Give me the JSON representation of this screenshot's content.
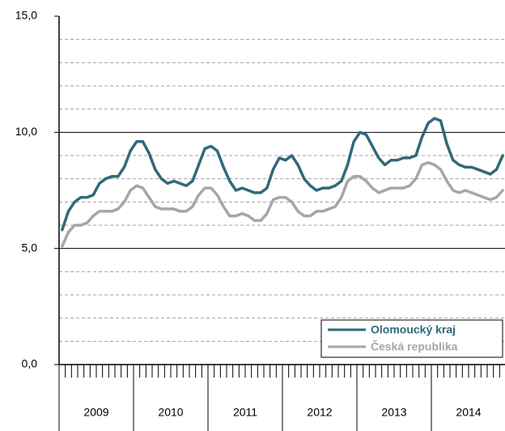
{
  "chart_data": {
    "type": "line",
    "categories": [
      "2009",
      "2009",
      "2009",
      "2009",
      "2009",
      "2009",
      "2009",
      "2009",
      "2009",
      "2009",
      "2009",
      "2009",
      "2010",
      "2010",
      "2010",
      "2010",
      "2010",
      "2010",
      "2010",
      "2010",
      "2010",
      "2010",
      "2010",
      "2010",
      "2011",
      "2011",
      "2011",
      "2011",
      "2011",
      "2011",
      "2011",
      "2011",
      "2011",
      "2011",
      "2011",
      "2011",
      "2012",
      "2012",
      "2012",
      "2012",
      "2012",
      "2012",
      "2012",
      "2012",
      "2012",
      "2012",
      "2012",
      "2012",
      "2013",
      "2013",
      "2013",
      "2013",
      "2013",
      "2013",
      "2013",
      "2013",
      "2013",
      "2013",
      "2013",
      "2013",
      "2014",
      "2014",
      "2014",
      "2014",
      "2014",
      "2014",
      "2014",
      "2014",
      "2014",
      "2014",
      "2014",
      "2014"
    ],
    "series": [
      {
        "name": "Olomoucký kraj",
        "color": "#31697a",
        "values": [
          5.8,
          6.6,
          7.0,
          7.2,
          7.2,
          7.3,
          7.8,
          8.0,
          8.1,
          8.1,
          8.5,
          9.2,
          9.6,
          9.6,
          9.1,
          8.4,
          8.0,
          7.8,
          7.9,
          7.8,
          7.7,
          7.9,
          8.6,
          9.3,
          9.4,
          9.2,
          8.5,
          7.9,
          7.5,
          7.6,
          7.5,
          7.4,
          7.4,
          7.6,
          8.4,
          8.9,
          8.8,
          9.0,
          8.6,
          8.0,
          7.7,
          7.5,
          7.6,
          7.6,
          7.7,
          7.9,
          8.6,
          9.6,
          10.0,
          9.9,
          9.4,
          8.9,
          8.6,
          8.8,
          8.8,
          8.9,
          8.9,
          9.0,
          9.8,
          10.4,
          10.6,
          10.5,
          9.5,
          8.8,
          8.6,
          8.5,
          8.5,
          8.4,
          8.3,
          8.2,
          8.4,
          9.0
        ]
      },
      {
        "name": "Česká republika",
        "color": "#a6a6a6",
        "values": [
          5.1,
          5.7,
          6.0,
          6.0,
          6.1,
          6.4,
          6.6,
          6.6,
          6.6,
          6.7,
          7.0,
          7.5,
          7.7,
          7.6,
          7.2,
          6.8,
          6.7,
          6.7,
          6.7,
          6.6,
          6.6,
          6.8,
          7.3,
          7.6,
          7.6,
          7.3,
          6.8,
          6.4,
          6.4,
          6.5,
          6.4,
          6.2,
          6.2,
          6.5,
          7.1,
          7.2,
          7.2,
          7.0,
          6.6,
          6.4,
          6.4,
          6.6,
          6.6,
          6.7,
          6.8,
          7.2,
          7.9,
          8.1,
          8.1,
          7.9,
          7.6,
          7.4,
          7.5,
          7.6,
          7.6,
          7.6,
          7.7,
          8.0,
          8.6,
          8.7,
          8.6,
          8.4,
          7.9,
          7.5,
          7.4,
          7.5,
          7.4,
          7.3,
          7.2,
          7.1,
          7.2,
          7.5
        ]
      }
    ],
    "ylim": [
      0,
      15
    ],
    "yticks": [
      {
        "value": 0,
        "label": "0,0"
      },
      {
        "value": 5,
        "label": "5,0"
      },
      {
        "value": 10,
        "label": "10,0"
      },
      {
        "value": 15,
        "label": "15,0"
      }
    ],
    "minor_yticks": [
      1,
      2,
      3,
      4,
      6,
      7,
      8,
      9,
      11,
      12,
      13,
      14
    ],
    "grid": true,
    "legend": "lower right"
  }
}
